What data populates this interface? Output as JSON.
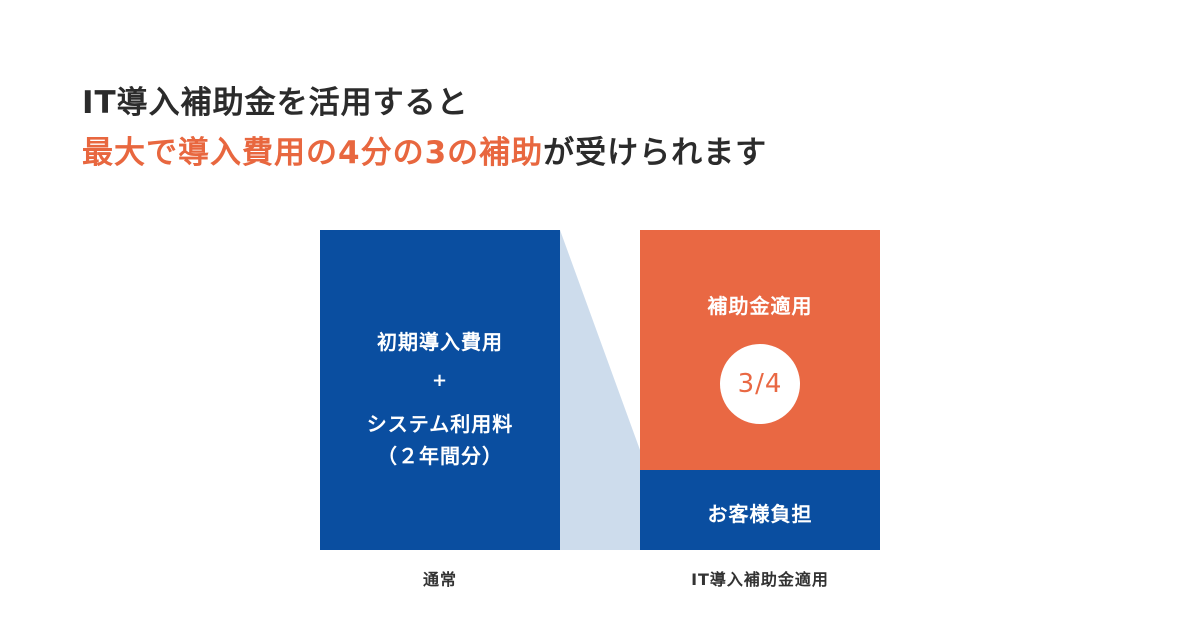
{
  "headline": {
    "line1": "IT導入補助金を活用すると",
    "line2_accent": "最大で導入費用の4分の3の補助",
    "line2_rest": "が受けられます"
  },
  "normal": {
    "line1": "初期導入費用",
    "plus": "+",
    "line2": "システム利用料",
    "line3": "（２年間分）",
    "caption": "通常"
  },
  "subsidized": {
    "subsidy_label": "補助金適用",
    "ratio": "3/4",
    "burden_label": "お客様負担",
    "caption": "IT導入補助金適用"
  },
  "colors": {
    "blue": "#0a4ea0",
    "orange": "#e96843",
    "connector": "#cddcec",
    "accent_text": "#e8673f"
  }
}
